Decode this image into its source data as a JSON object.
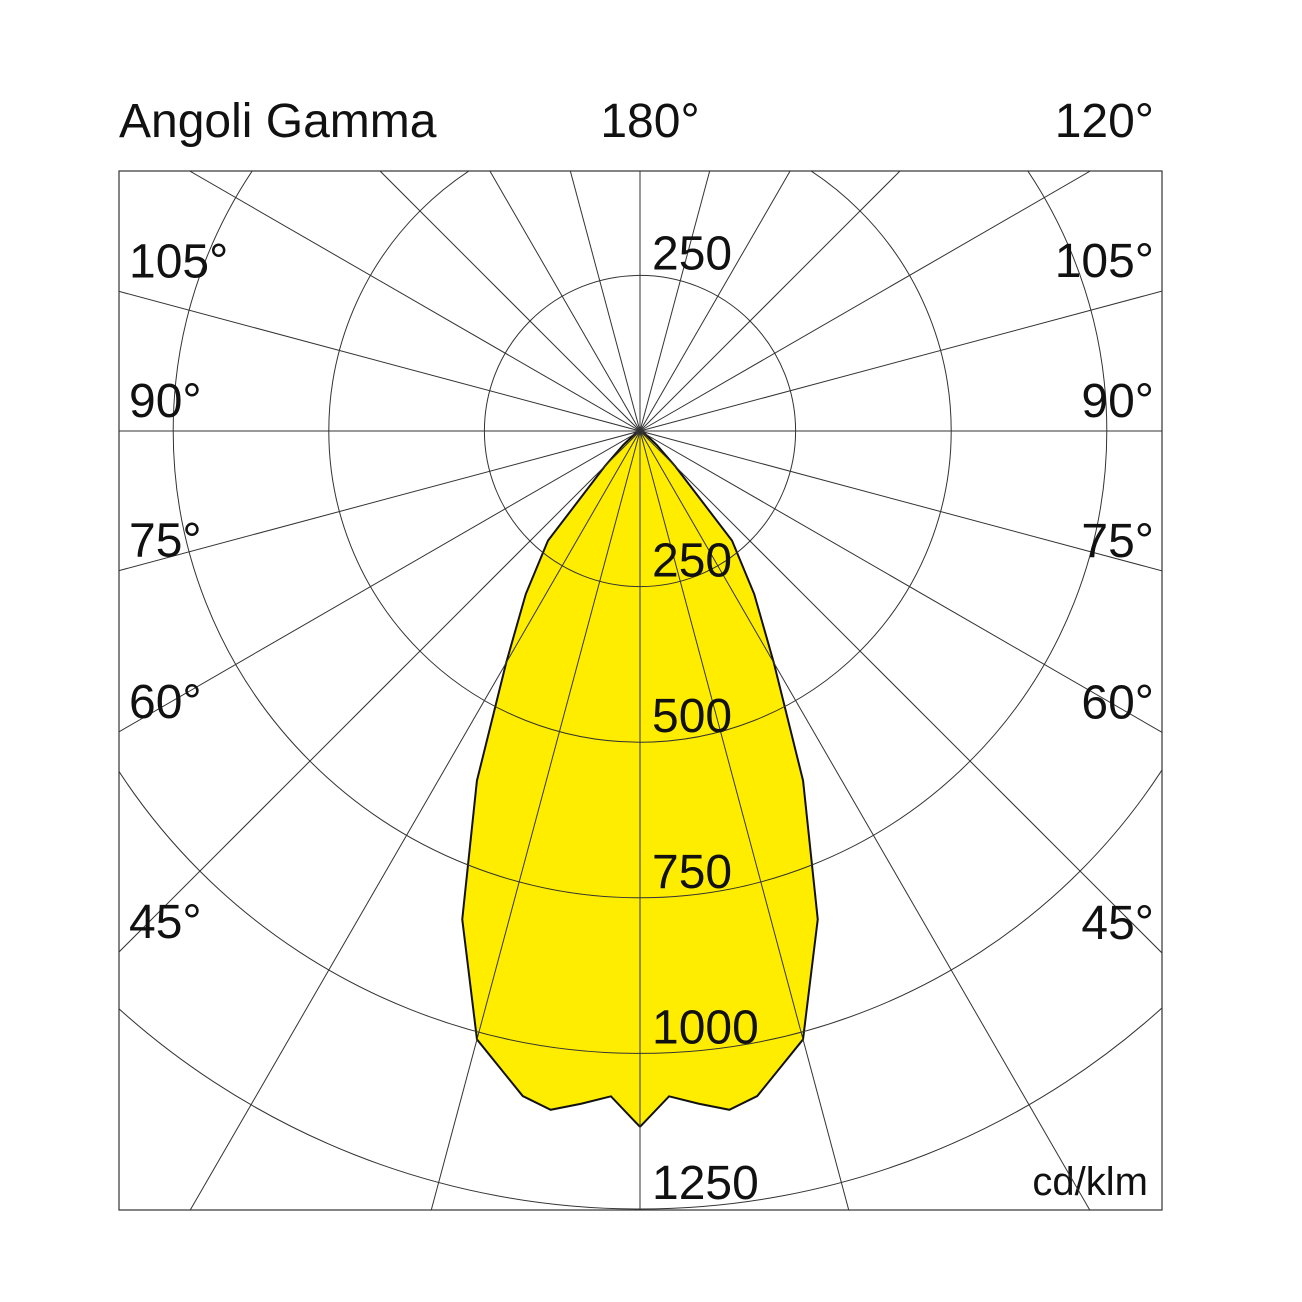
{
  "chart_data": {
    "type": "polar",
    "title": "Angoli Gamma",
    "unit": "cd/klm",
    "color": "#ffed00",
    "gamma": [
      0,
      2.5,
      5,
      7.5,
      10,
      15,
      20,
      25,
      30,
      35,
      40,
      45,
      50,
      60,
      70,
      90
    ],
    "values": [
      1118,
      1070,
      1085,
      1100,
      1085,
      1012,
      835,
      620,
      430,
      320,
      230,
      80,
      35,
      10,
      0,
      0
    ],
    "rlim": [
      0,
      1250
    ],
    "rticks": [
      250,
      500,
      750,
      1000,
      1250
    ],
    "angle_ticks": [
      0,
      15,
      30,
      45,
      60,
      75,
      90,
      105,
      120,
      135,
      150,
      165,
      180,
      195,
      210,
      225,
      240,
      255,
      270,
      285,
      300,
      315,
      330,
      345
    ],
    "left_angle_labels": [
      {
        "value": 105,
        "label": "105°"
      },
      {
        "value": 90,
        "label": "90°"
      },
      {
        "value": 75,
        "label": "75°"
      },
      {
        "value": 60,
        "label": "60°"
      },
      {
        "value": 45,
        "label": "45°"
      }
    ],
    "right_angle_labels": [
      {
        "value": 180,
        "label": "180°"
      },
      {
        "value": 120,
        "label": "120°"
      },
      {
        "value": 105,
        "label": "105°"
      },
      {
        "value": 90,
        "label": "90°"
      },
      {
        "value": 75,
        "label": "75°"
      },
      {
        "value": 60,
        "label": "60°"
      },
      {
        "value": 45,
        "label": "45°"
      }
    ]
  }
}
